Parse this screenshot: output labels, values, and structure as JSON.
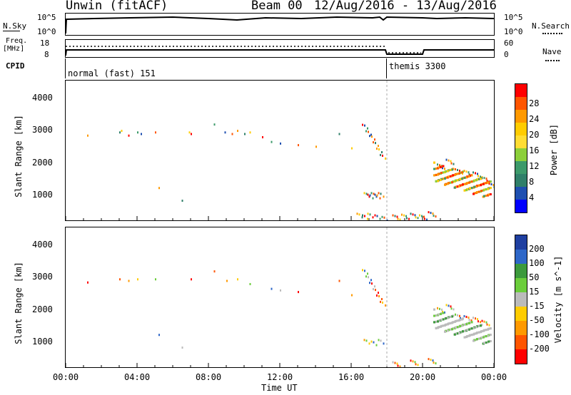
{
  "header": {
    "station": "Unwin (fitACF)",
    "beam": "Beam 00",
    "dates": "12/Aug/2016 - 13/Aug/2016"
  },
  "nsky_panel": {
    "left_label": "N.Sky",
    "left_ticks": [
      "10^5",
      "10^0"
    ],
    "right_ticks": [
      "10^5",
      "10^0"
    ],
    "right_label": "N.Search"
  },
  "freq_panel": {
    "left_label_1": "Freq.",
    "left_label_2": "[MHz]",
    "left_ticks": [
      "18",
      "8"
    ],
    "right_ticks": [
      "60",
      "0"
    ],
    "right_label": "Nave",
    "cpid_label": "CPID"
  },
  "cpid": {
    "mode_1": "normal (fast) 151",
    "mode_2": "themis 3300"
  },
  "axes": {
    "ylabel": "Slant Range [km]",
    "yticks": [
      "4000",
      "3000",
      "2000",
      "1000"
    ],
    "xticks": [
      "00:00",
      "04:00",
      "08:00",
      "12:00",
      "16:00",
      "20:00",
      "00:00"
    ],
    "xlabel": "Time UT"
  },
  "power_scale": {
    "label": "Power [dB]",
    "ticks": [
      "28",
      "24",
      "20",
      "16",
      "12",
      "8",
      "4"
    ],
    "colors": [
      "#ff0000",
      "#ff5500",
      "#ff9900",
      "#ffcc00",
      "#ffdd33",
      "#8ccf3a",
      "#3c9a6a",
      "#2f7f69",
      "#1e4fb0",
      "#0000ff"
    ]
  },
  "velocity_scale": {
    "label": "Velocity [m s^-1]",
    "ticks": [
      "200",
      "100",
      "50",
      "15",
      "-15",
      "-50",
      "-100",
      "-200"
    ],
    "colors": [
      "#1f3fa0",
      "#2e67c8",
      "#3c9a3c",
      "#6bcd3b",
      "#bbbbbb",
      "#ffcc00",
      "#ff9900",
      "#ff5500",
      "#ff0000"
    ]
  },
  "chart_data": [
    {
      "type": "scatter",
      "title": "Unwin (fitACF) Beam 00 12/Aug/2016 - 13/Aug/2016",
      "subtitle": "Power",
      "xlabel": "Time UT",
      "ylabel": "Slant Range [km]",
      "xlim": [
        0,
        24
      ],
      "ylim": [
        200,
        4600
      ],
      "colorbar": {
        "label": "Power [dB]",
        "range": [
          0,
          32
        ]
      },
      "series": [
        {
          "x": [
            1.2,
            3.0,
            3.1,
            3.5,
            4.0,
            4.2,
            5.0,
            5.2,
            6.5,
            6.9,
            7.0,
            8.3,
            8.9,
            9.3,
            9.6,
            10.0,
            10.3,
            11.0,
            11.5,
            12.0,
            13.0,
            14.0,
            15.3,
            16.0
          ],
          "y": [
            2900,
            3000,
            3050,
            2900,
            3000,
            2950,
            3000,
            1250,
            850,
            3000,
            2950,
            3250,
            3000,
            2950,
            3050,
            2950,
            3000,
            2850,
            2700,
            2650,
            2600,
            2550,
            2950,
            2500
          ]
        },
        {
          "x": [
            16.8,
            17.0,
            17.2,
            17.4,
            17.6,
            17.8,
            16.9,
            17.1,
            17.3,
            17.5,
            17.7,
            16.5,
            16.8,
            17.1,
            17.5,
            17.9
          ],
          "y": [
            3150,
            2950,
            2800,
            2600,
            2400,
            2200,
            1000,
            950,
            1000,
            950,
            1000,
            350,
            300,
            350,
            300,
            250
          ]
        },
        {
          "x": [
            18.5,
            19.0,
            19.5,
            20.0,
            20.5,
            21.0,
            21.5,
            22.0,
            22.5,
            23.0,
            23.5,
            23.9
          ],
          "y": [
            300,
            320,
            350,
            300,
            400,
            1900,
            2050,
            1750,
            1700,
            1650,
            1500,
            1300
          ]
        }
      ]
    },
    {
      "type": "scatter",
      "title": "Unwin (fitACF) Beam 00 12/Aug/2016 - 13/Aug/2016",
      "subtitle": "Velocity",
      "xlabel": "Time UT",
      "ylabel": "Slant Range [km]",
      "xlim": [
        0,
        24
      ],
      "ylim": [
        200,
        4600
      ],
      "colorbar": {
        "label": "Velocity [m s^-1]",
        "range": [
          -250,
          250
        ]
      },
      "series": [
        {
          "x": [
            1.2,
            3.0,
            3.5,
            4.0,
            5.0,
            5.2,
            6.5,
            7.0,
            8.3,
            9.0,
            9.6,
            10.3,
            11.5,
            12.0,
            13.0,
            15.3,
            16.0
          ],
          "y": [
            2900,
            3000,
            2950,
            3000,
            3000,
            1250,
            850,
            3000,
            3250,
            2950,
            3000,
            2850,
            2700,
            2650,
            2600,
            2950,
            2500
          ]
        },
        {
          "x": [
            16.8,
            17.0,
            17.2,
            17.4,
            17.6,
            17.8,
            16.9,
            17.3,
            17.7
          ],
          "y": [
            3200,
            3000,
            2800,
            2600,
            2400,
            2200,
            1000,
            950,
            1000
          ]
        },
        {
          "x": [
            18.5,
            19.5,
            20.5,
            21.0,
            21.5,
            22.0,
            22.5,
            23.0,
            23.5
          ],
          "y": [
            300,
            350,
            400,
            2000,
            2100,
            1800,
            1750,
            1700,
            1600
          ]
        }
      ]
    }
  ]
}
